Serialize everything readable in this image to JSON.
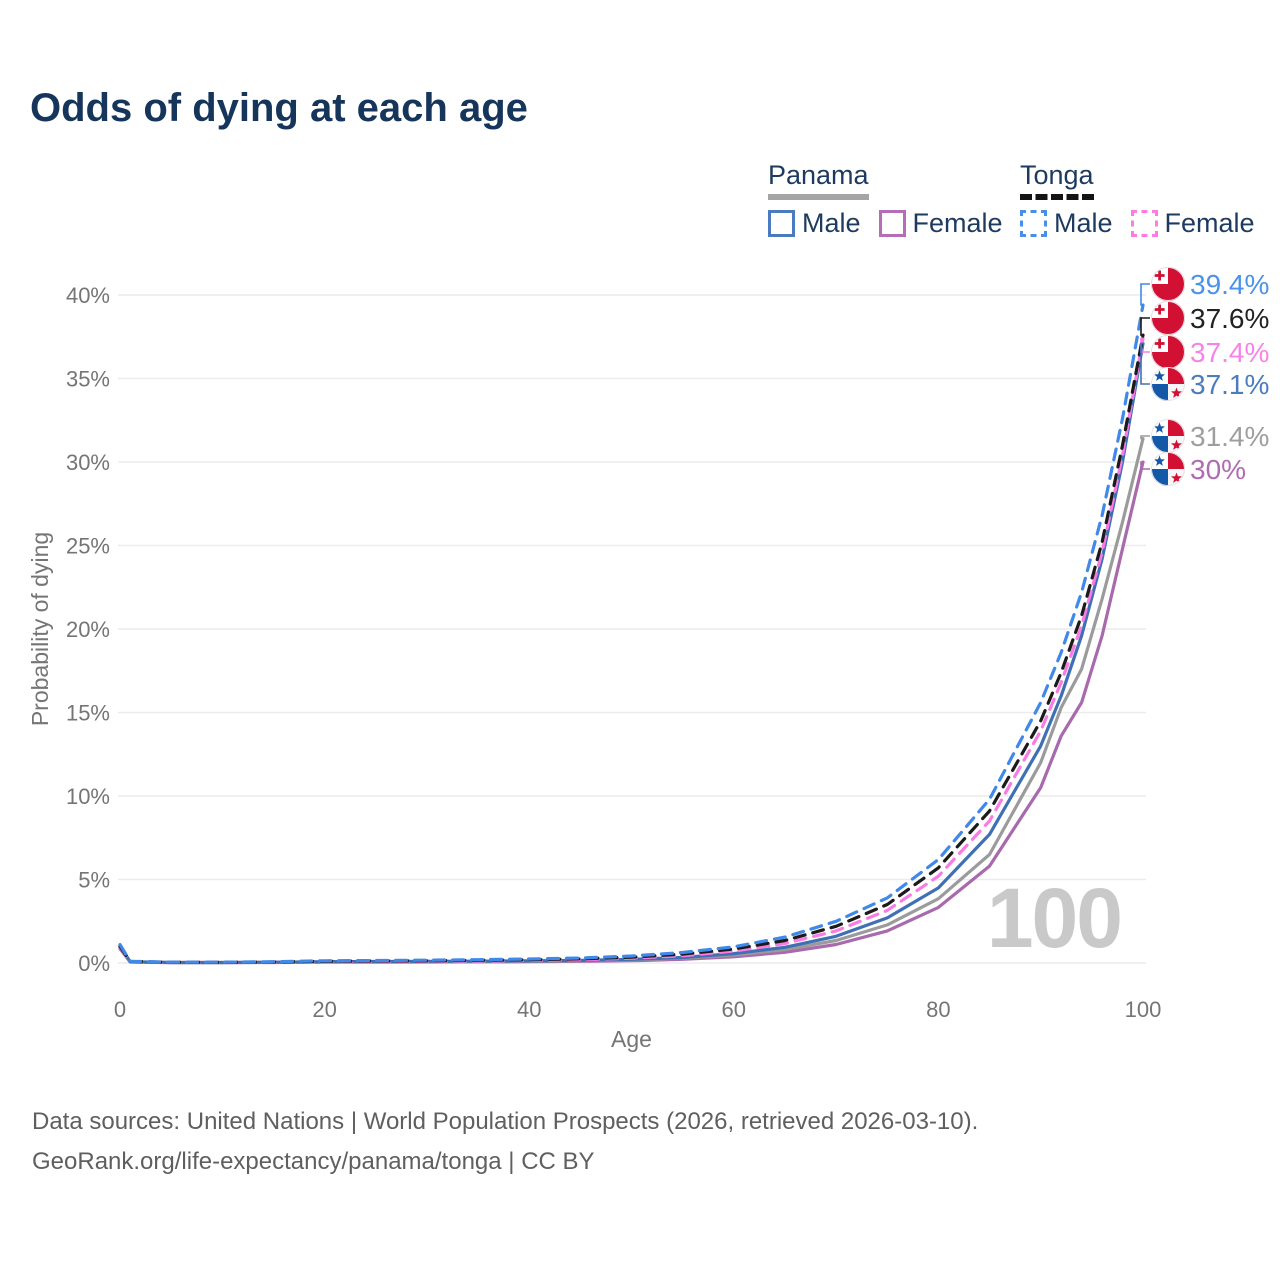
{
  "title": "Odds of dying at each age",
  "legend": {
    "panama": {
      "label": "Panama",
      "male_label": "Male",
      "female_label": "Female",
      "underline_color": "#a5a5a5",
      "underline_style": "solid",
      "male_color": "#4a7ac0",
      "female_color": "#b46db8"
    },
    "tonga": {
      "label": "Tonga",
      "male_label": "Male",
      "female_label": "Female",
      "underline_color": "#141414",
      "underline_style": "dashed",
      "male_color": "#4591ea",
      "female_color": "#fa7ce6"
    }
  },
  "colors": {
    "flag_red": "#d21034",
    "flag_blue": "#1458a8",
    "flag_white": "#ffffff",
    "flag_offwhite": "#f7f7fa",
    "gridline": "#ececec",
    "watermark": "#c9c9c9",
    "tick_text": "#757575",
    "title_text": "#16355b",
    "footer_text": "#5f5f5f"
  },
  "watermark_age": "100",
  "footer": {
    "line1": "Data sources: United Nations | World Population Prospects (2026, retrieved 2026-03-10).",
    "line2": "GeoRank.org/life-expectancy/panama/tonga | CC BY"
  },
  "chart_data": {
    "type": "line",
    "title": "Odds of dying at each age",
    "xlabel": "Age",
    "ylabel": "Probability of dying",
    "xlim": [
      0,
      100
    ],
    "ylim_percent": [
      0,
      41
    ],
    "x_ticks": [
      0,
      20,
      40,
      60,
      80,
      100
    ],
    "y_ticks_percent": [
      0,
      5,
      10,
      15,
      20,
      25,
      30,
      35,
      40
    ],
    "grid": true,
    "legend_position": "top-right",
    "age_annotation": "100",
    "ages": [
      0,
      1,
      5,
      10,
      15,
      20,
      25,
      30,
      35,
      40,
      45,
      50,
      55,
      60,
      65,
      70,
      75,
      80,
      85,
      90,
      92,
      94,
      96,
      98,
      100
    ],
    "series": [
      {
        "id": "panama-female",
        "name": "Panama Female",
        "country": "Panama",
        "sex": "Female",
        "color": "#a869ad",
        "label_color": "#af6cb0",
        "dashed": false,
        "flag": "panama",
        "end_label": "30%",
        "values": [
          0.85,
          0.06,
          0.02,
          0.02,
          0.03,
          0.05,
          0.05,
          0.06,
          0.07,
          0.08,
          0.1,
          0.14,
          0.22,
          0.37,
          0.64,
          1.11,
          1.92,
          3.33,
          5.8,
          10.5,
          13.6,
          15.6,
          19.6,
          24.8,
          30.0
        ]
      },
      {
        "id": "panama-both-sexes",
        "name": "Panama (both sexes)",
        "country": "Panama",
        "sex": "Both",
        "color": "#9b9b9b",
        "label_color": "#9e9e9e",
        "dashed": false,
        "flag": "panama",
        "end_label": "31.4%",
        "values": [
          0.95,
          0.07,
          0.03,
          0.03,
          0.04,
          0.06,
          0.07,
          0.08,
          0.09,
          0.11,
          0.14,
          0.19,
          0.29,
          0.48,
          0.8,
          1.35,
          2.28,
          3.85,
          6.5,
          12.0,
          15.3,
          17.6,
          21.8,
          26.4,
          31.4
        ]
      },
      {
        "id": "panama-male",
        "name": "Panama Male",
        "country": "Panama",
        "sex": "Male",
        "color": "#4070b4",
        "label_color": "#4c7cc0",
        "dashed": false,
        "flag": "panama",
        "end_label": "37.1%",
        "values": [
          1.0,
          0.08,
          0.03,
          0.03,
          0.05,
          0.08,
          0.09,
          0.1,
          0.11,
          0.13,
          0.16,
          0.22,
          0.33,
          0.56,
          0.94,
          1.6,
          2.7,
          4.5,
          7.7,
          13.0,
          16.0,
          19.6,
          24.2,
          30.0,
          37.1
        ]
      },
      {
        "id": "tonga-female",
        "name": "Tonga Female",
        "country": "Tonga",
        "sex": "Female",
        "color": "#f87ce4",
        "label_color": "#f883e8",
        "dashed": true,
        "flag": "tonga",
        "end_label": "37.4%",
        "values": [
          0.95,
          0.08,
          0.03,
          0.04,
          0.05,
          0.08,
          0.09,
          0.1,
          0.12,
          0.15,
          0.2,
          0.29,
          0.44,
          0.71,
          1.17,
          1.92,
          3.15,
          5.2,
          8.5,
          13.9,
          16.8,
          20.2,
          24.6,
          30.4,
          37.4
        ]
      },
      {
        "id": "tonga-both-sexes",
        "name": "Tonga (both sexes)",
        "country": "Tonga",
        "sex": "Both",
        "color": "#1b1b1b",
        "label_color": "#222222",
        "dashed": true,
        "flag": "tonga",
        "end_label": "37.6%",
        "values": [
          1.0,
          0.09,
          0.04,
          0.04,
          0.06,
          0.1,
          0.12,
          0.13,
          0.16,
          0.19,
          0.25,
          0.35,
          0.53,
          0.84,
          1.35,
          2.2,
          3.5,
          5.7,
          9.1,
          14.5,
          17.4,
          20.8,
          25.2,
          31.0,
          37.6
        ]
      },
      {
        "id": "tonga-male",
        "name": "Tonga Male",
        "country": "Tonga",
        "sex": "Male",
        "color": "#4189e8",
        "label_color": "#4b93ea",
        "dashed": true,
        "flag": "tonga",
        "end_label": "39.4%",
        "values": [
          1.1,
          0.1,
          0.05,
          0.05,
          0.08,
          0.13,
          0.15,
          0.17,
          0.2,
          0.24,
          0.3,
          0.42,
          0.63,
          0.97,
          1.55,
          2.5,
          3.9,
          6.2,
          9.8,
          15.6,
          18.6,
          22.2,
          26.8,
          32.6,
          39.4
        ]
      }
    ]
  }
}
